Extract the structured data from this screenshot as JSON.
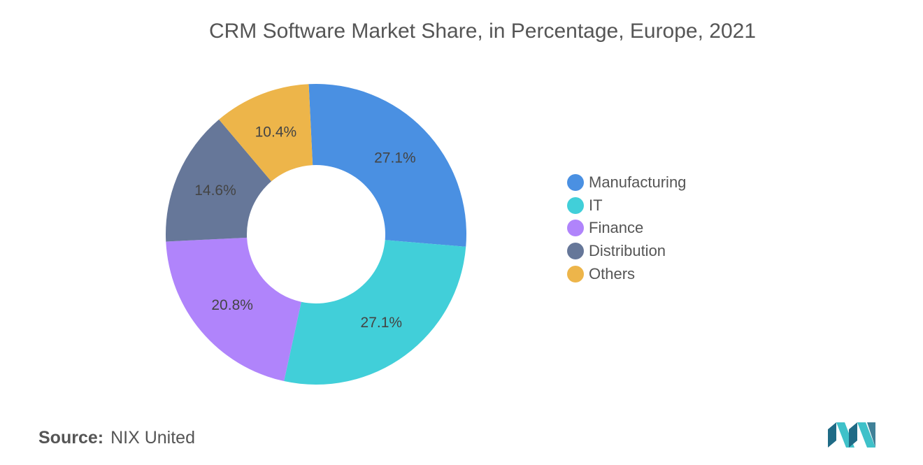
{
  "chart_data": {
    "type": "pie",
    "title": "CRM Software Market Share, in Percentage, Europe, 2021",
    "donut": true,
    "legend_position": "right",
    "slices": [
      {
        "label": "Manufacturing",
        "value": 27.1,
        "display": "27.1%",
        "color": "#4A90E2"
      },
      {
        "label": "IT",
        "value": 27.1,
        "display": "27.1%",
        "color": "#41CFD9"
      },
      {
        "label": "Finance",
        "value": 20.8,
        "display": "20.8%",
        "color": "#B084FB"
      },
      {
        "label": "Distribution",
        "value": 14.6,
        "display": "14.6%",
        "color": "#667799"
      },
      {
        "label": "Others",
        "value": 10.4,
        "display": "10.4%",
        "color": "#EDB54A"
      }
    ]
  },
  "source": {
    "key": "Source:",
    "value": "NIX United"
  },
  "logo": {
    "icon": "mordor-intelligence-logo",
    "colors": [
      "#1F6B86",
      "#3FC1C9"
    ]
  }
}
